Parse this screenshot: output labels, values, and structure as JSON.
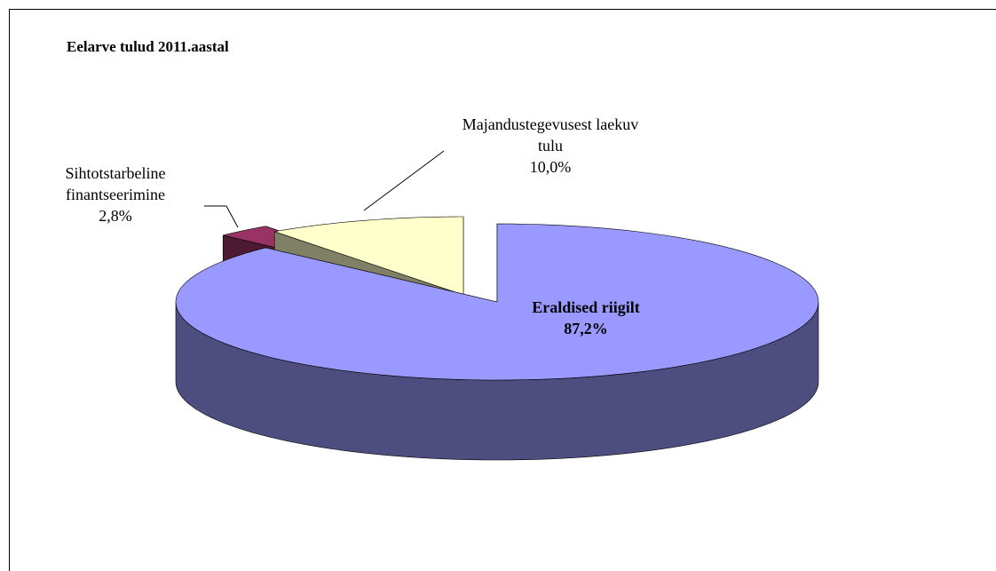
{
  "chart_data": {
    "type": "pie3d",
    "title": "Eelarve tulud 2011.aastal",
    "categories": [
      "Eraldised riigilt",
      "Sihtotstarbeline finantseerimine",
      "Majandustegevusest laekuv tulu"
    ],
    "values": [
      87.2,
      2.8,
      10.0
    ],
    "value_labels": [
      "87,2%",
      "2,8%",
      "10,0%"
    ],
    "colors": [
      "#9999ff",
      "#993366",
      "#ffffcc"
    ]
  }
}
